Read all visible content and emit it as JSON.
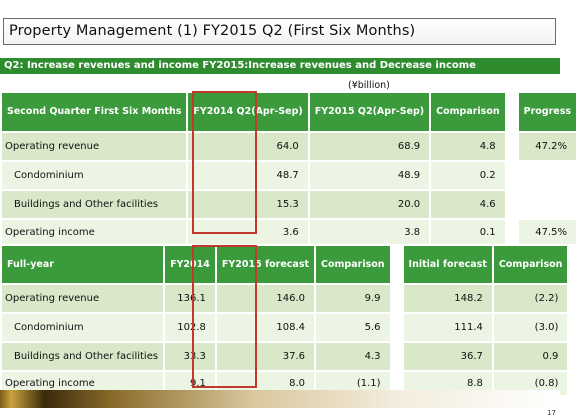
{
  "title": "Property Management (1) FY2015 Q2 (First Six Months)",
  "subtitle": "Q2: Increase revenues and income FY2015:Increase revenues and Decrease income",
  "unit": "(¥billion)",
  "page_number": "17",
  "table1": {
    "header": {
      "label": "Second Quarter First Six Months",
      "fy2014": "FY2014 Q2(Apr-Sep)",
      "fy2015": "FY2015 Q2(Apr-Sep)",
      "comparison": "Comparison",
      "progress": "Progress"
    },
    "rows": [
      {
        "label": "Operating revenue",
        "fy2014": "64.0",
        "fy2015": "68.9",
        "comparison": "4.8",
        "progress": "47.2%",
        "indent": false
      },
      {
        "label": "Condominium",
        "fy2014": "48.7",
        "fy2015": "48.9",
        "comparison": "0.2",
        "progress": "",
        "indent": true
      },
      {
        "label": "Buildings and Other facilities",
        "fy2014": "15.3",
        "fy2015": "20.0",
        "comparison": "4.6",
        "progress": "",
        "indent": true
      },
      {
        "label": "Operating income",
        "fy2014": "3.6",
        "fy2015": "3.8",
        "comparison": "0.1",
        "progress": "47.5%",
        "indent": false
      }
    ]
  },
  "table2": {
    "header": {
      "label": "Full-year",
      "fy2014": "FY2014",
      "fy2015": "FY2015 forecast",
      "comparison": "Comparison",
      "initial": "Initial forecast",
      "comparison2": "Comparison"
    },
    "rows": [
      {
        "label": "Operating revenue",
        "fy2014": "136.1",
        "fy2015": "146.0",
        "comparison": "9.9",
        "initial": "148.2",
        "comparison2": "(2.2)",
        "indent": false
      },
      {
        "label": "Condominium",
        "fy2014": "102.8",
        "fy2015": "108.4",
        "comparison": "5.6",
        "initial": "111.4",
        "comparison2": "(3.0)",
        "indent": true
      },
      {
        "label": "Buildings and Other facilities",
        "fy2014": "33.3",
        "fy2015": "37.6",
        "comparison": "4.3",
        "initial": "36.7",
        "comparison2": "0.9",
        "indent": true
      },
      {
        "label": "Operating income",
        "fy2014": "9.1",
        "fy2015": "8.0",
        "comparison": "(1.1)",
        "initial": "8.8",
        "comparison2": "(0.8)",
        "indent": false
      }
    ]
  },
  "colors": {
    "header_green": "#3b9a3b",
    "row_dark": "#d8e8c9",
    "row_light": "#ecf4e4",
    "highlight_red": "#c0392b"
  }
}
